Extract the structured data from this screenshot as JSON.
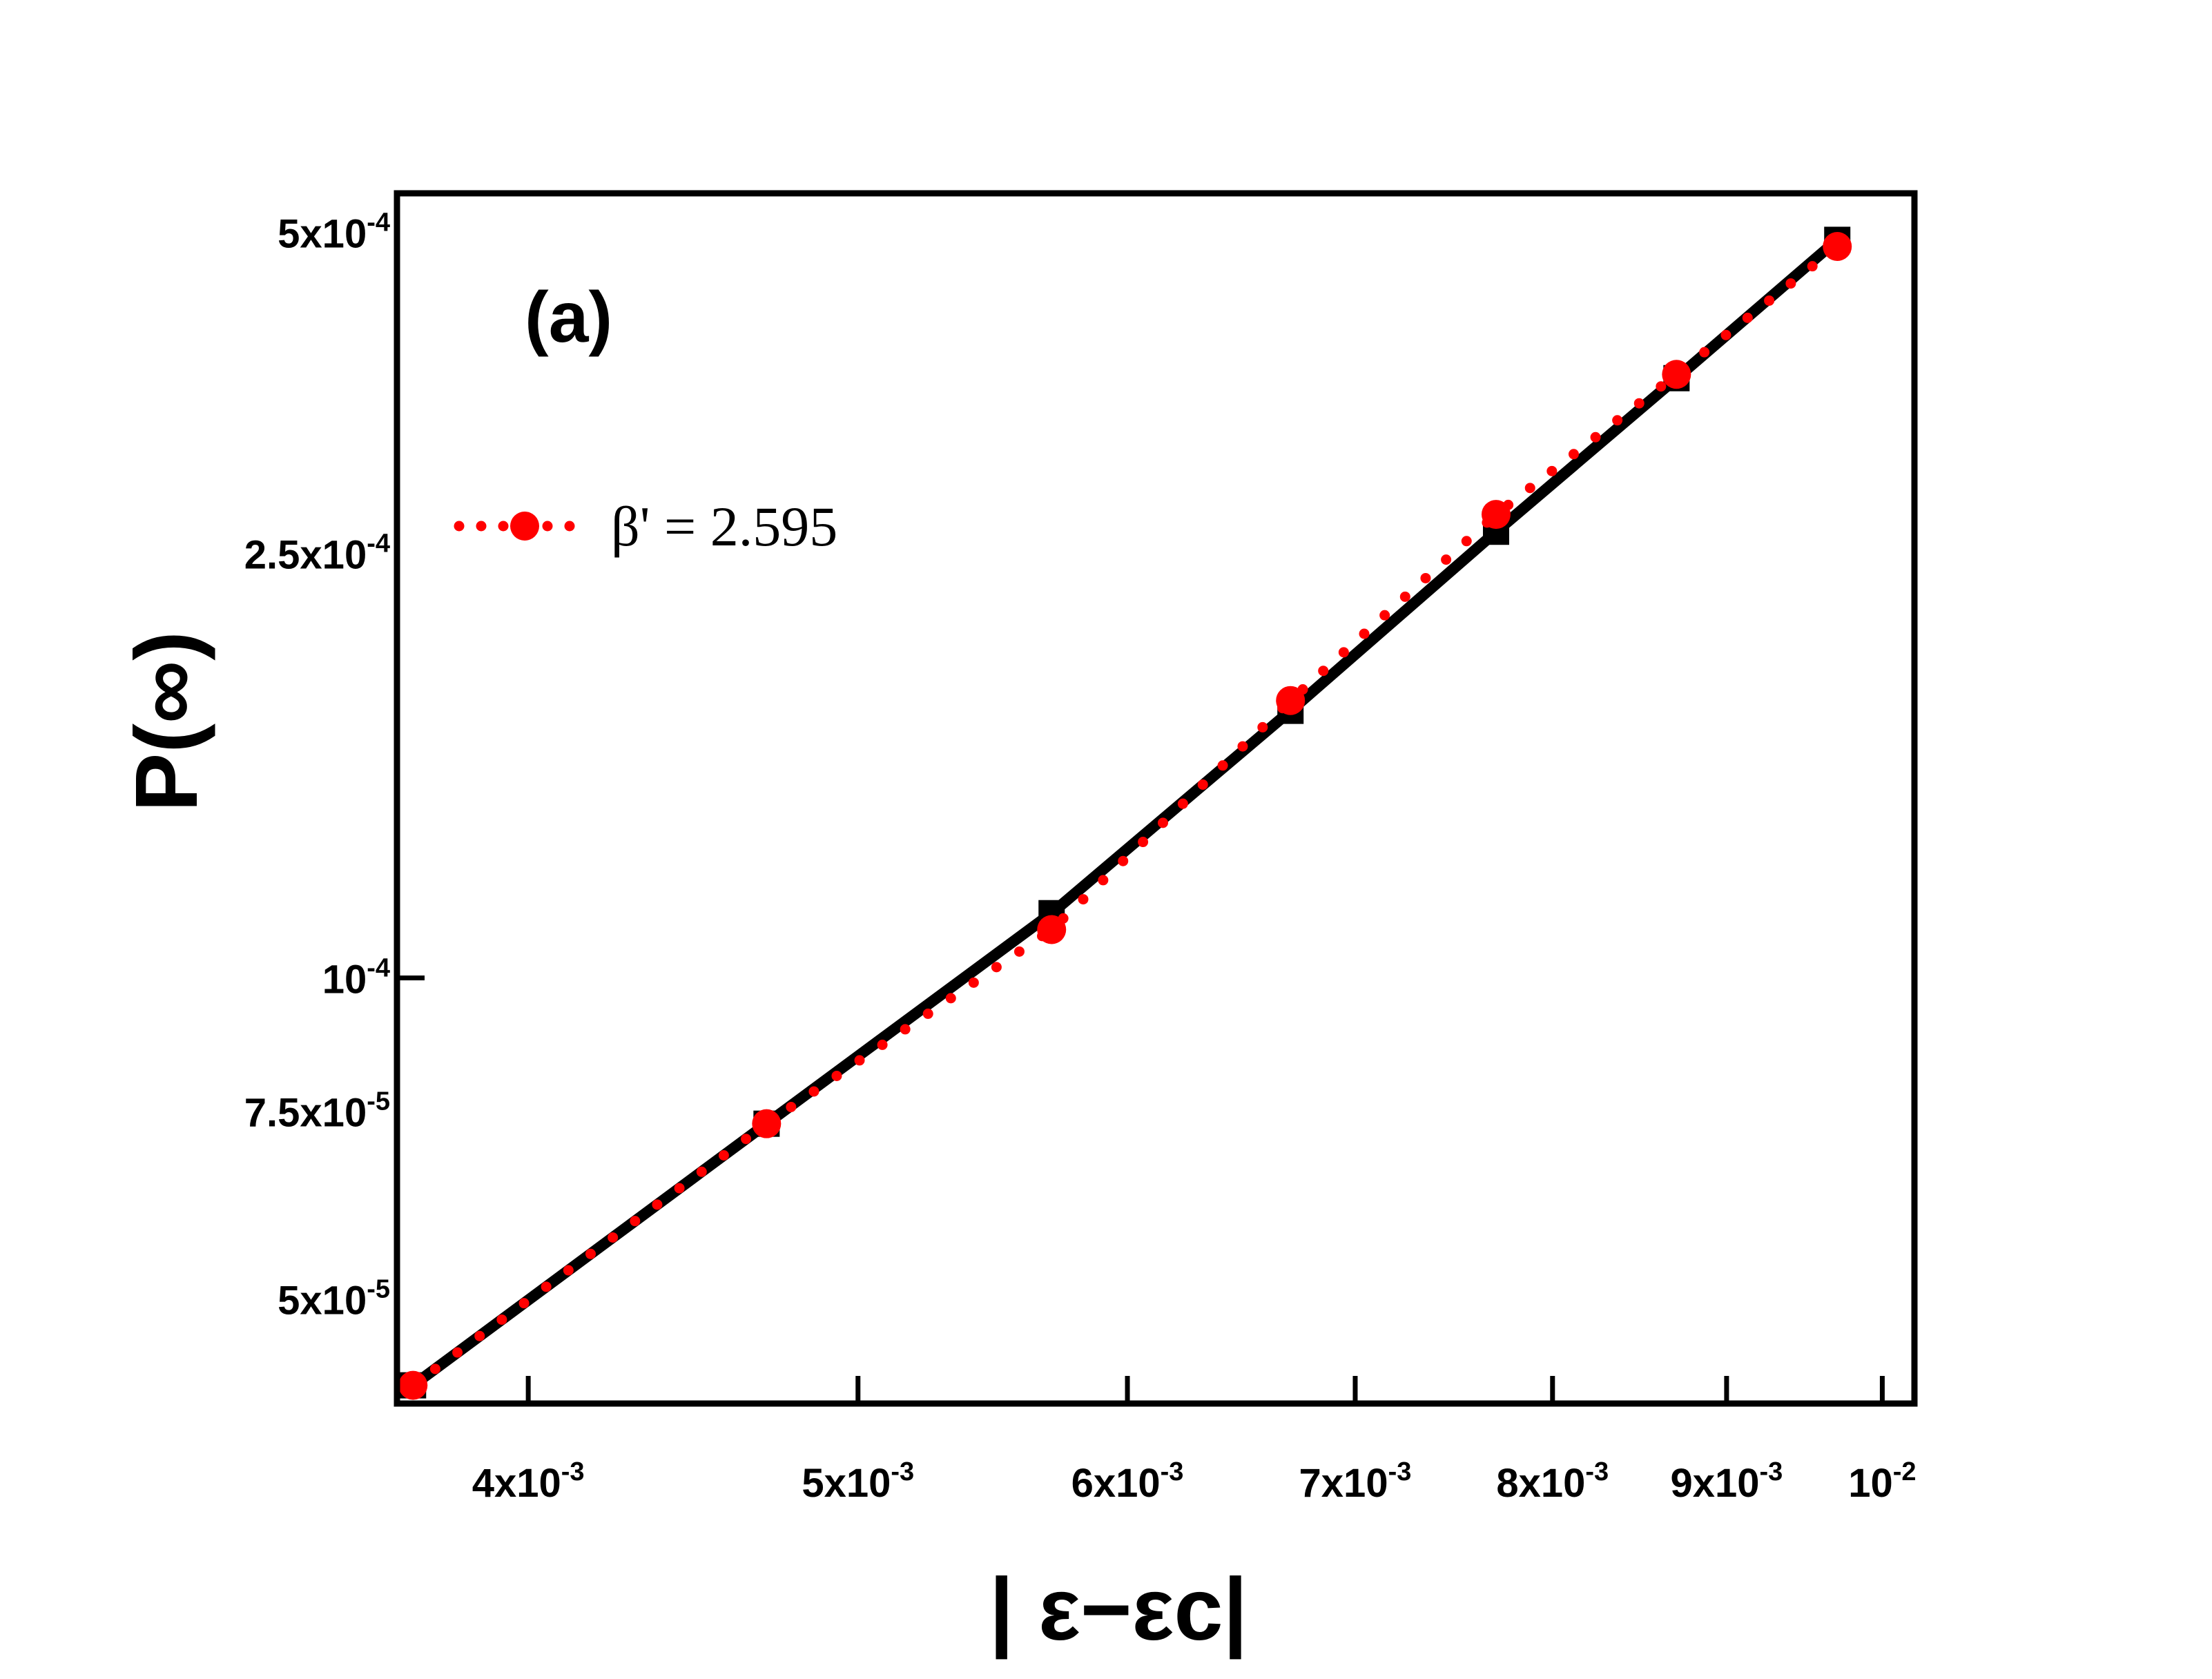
{
  "chart_data": {
    "type": "line",
    "panel_label": "(a)",
    "xlabel": "| ε−εc|",
    "ylabel": "P(∞)",
    "x_scale": "log",
    "y_scale": "log",
    "xlim": [
      0.00366,
      0.01022
    ],
    "ylim": [
      3.99e-05,
      0.000544
    ],
    "x_ticks": [
      {
        "value": 0.004,
        "base": "4x10",
        "exp": "-3"
      },
      {
        "value": 0.005,
        "base": "5x10",
        "exp": "-3"
      },
      {
        "value": 0.006,
        "base": "6x10",
        "exp": "-3"
      },
      {
        "value": 0.007,
        "base": "7x10",
        "exp": "-3"
      },
      {
        "value": 0.008,
        "base": "8x10",
        "exp": "-3"
      },
      {
        "value": 0.009,
        "base": "9x10",
        "exp": "-3"
      },
      {
        "value": 0.01,
        "base": "10",
        "exp": "-2"
      }
    ],
    "y_ticks": [
      {
        "value": 5e-05,
        "base": "5x10",
        "exp": "-5"
      },
      {
        "value": 7.5e-05,
        "base": "7.5x10",
        "exp": "-5"
      },
      {
        "value": 0.0001,
        "base": "10",
        "exp": "-4"
      },
      {
        "value": 0.00025,
        "base": "2.5x10",
        "exp": "-4"
      },
      {
        "value": 0.0005,
        "base": "5x10",
        "exp": "-4"
      }
    ],
    "y_ticks_with_mark": [
      0.0001
    ],
    "series": [
      {
        "style": "solid-line-square-markers",
        "color": "#000000",
        "x": [
          0.0037,
          0.0047,
          0.0057,
          0.0067,
          0.0077,
          0.0087,
          0.0097
        ],
        "y": [
          4.15e-05,
          7.3e-05,
          0.000115,
          0.000178,
          0.000262,
          0.000365,
          0.000492
        ]
      },
      {
        "name": "β' = 2.595",
        "style": "dotted-line-circle-markers",
        "color": "#ff0000",
        "x": [
          0.0037,
          0.0047,
          0.0057,
          0.0067,
          0.0077,
          0.0087,
          0.0097
        ],
        "y": [
          4.15e-05,
          7.3e-05,
          0.000111,
          0.000182,
          0.000272,
          0.000368,
          0.000485
        ]
      }
    ],
    "legend": {
      "placement": "top-left",
      "label": "β' = 2.595"
    }
  }
}
